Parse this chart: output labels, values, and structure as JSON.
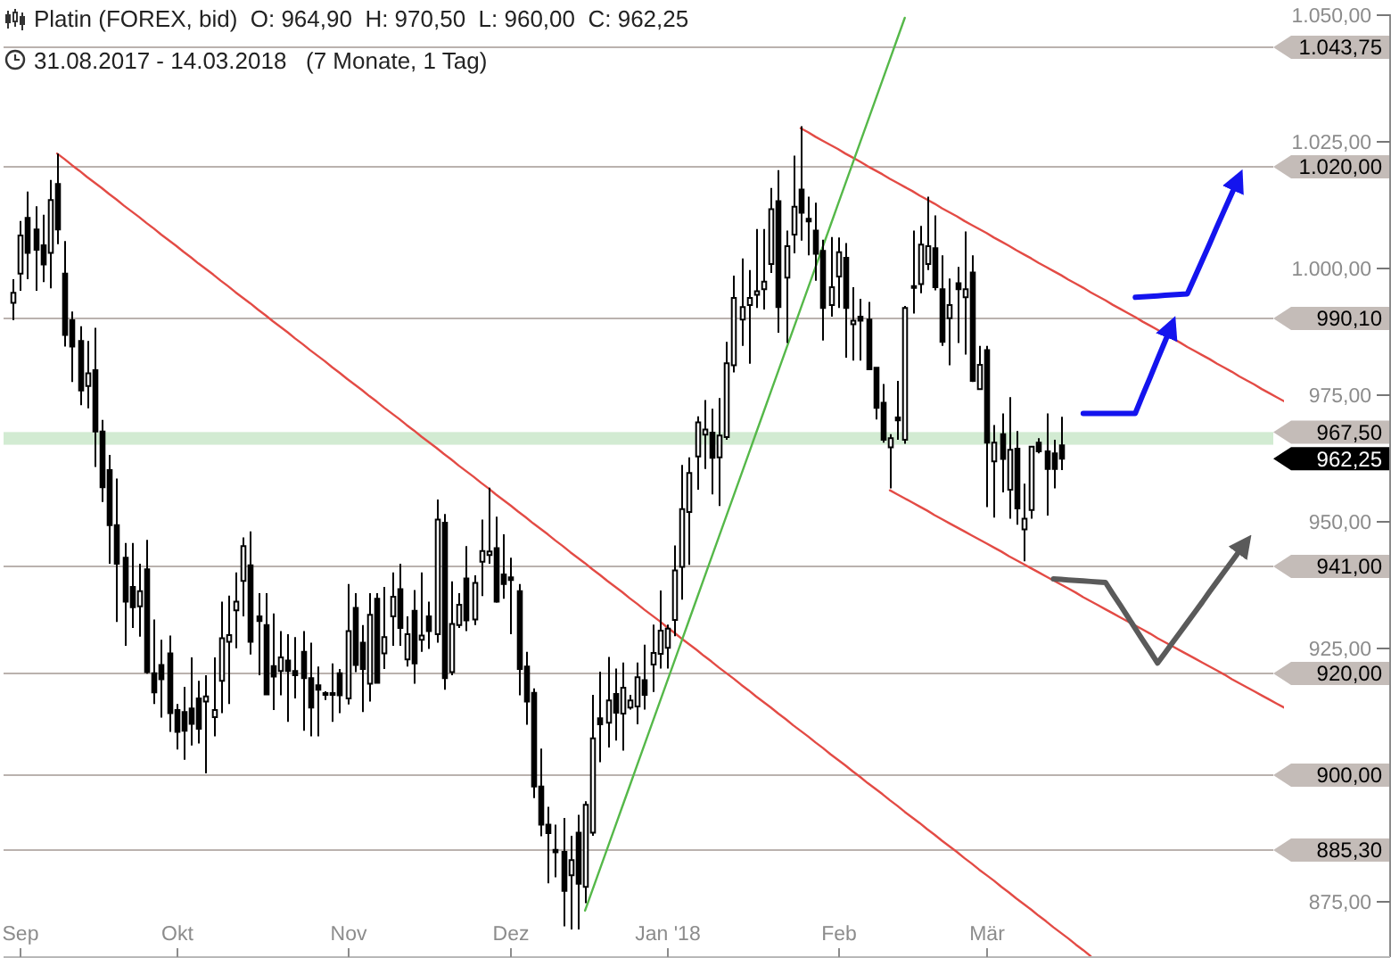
{
  "chart_data": {
    "type": "candlestick",
    "title": "Platin (FOREX, bid)  O: 964,90  H: 970,50  L: 960,00  C: 962,25",
    "subtitle": "31.08.2017 - 14.03.2018   (7 Monate, 1 Tag)",
    "color": "#000000",
    "categories": [
      null,
      "Sep",
      null,
      null,
      null,
      null,
      null,
      null,
      null,
      null,
      null,
      null,
      null,
      null,
      null,
      null,
      null,
      null,
      null,
      null,
      null,
      null,
      "Okt",
      null,
      null,
      null,
      null,
      null,
      null,
      null,
      null,
      null,
      null,
      null,
      null,
      null,
      null,
      null,
      null,
      null,
      null,
      null,
      null,
      null,
      null,
      "Nov",
      null,
      null,
      null,
      null,
      null,
      null,
      null,
      null,
      null,
      null,
      null,
      null,
      null,
      null,
      null,
      null,
      null,
      null,
      null,
      null,
      null,
      "Dez",
      null,
      null,
      null,
      null,
      null,
      null,
      null,
      null,
      null,
      null,
      null,
      null,
      null,
      null,
      null,
      null,
      null,
      null,
      null,
      null,
      "Jan '18",
      null,
      null,
      null,
      null,
      null,
      null,
      null,
      null,
      null,
      null,
      null,
      null,
      null,
      null,
      null,
      null,
      null,
      null,
      null,
      null,
      null,
      null,
      "Feb",
      null,
      null,
      null,
      null,
      null,
      null,
      null,
      null,
      null,
      null,
      null,
      null,
      null,
      null,
      null,
      null,
      null,
      null,
      null,
      "Mär",
      null,
      null,
      null,
      null,
      null,
      null,
      null,
      null,
      null,
      null,
      null,
      null,
      null,
      null,
      null,
      null,
      null,
      null,
      null,
      null,
      null,
      null,
      null,
      null,
      null,
      null,
      null,
      null,
      null,
      null,
      null,
      null,
      null,
      null,
      null,
      null,
      null,
      null,
      null,
      null
    ],
    "ohlc": [
      [
        993.0,
        997.7,
        989.6,
        995.0
      ],
      [
        998.8,
        1009.2,
        995.4,
        1006.3
      ],
      [
        1009.8,
        1015.0,
        997.7,
        1002.9
      ],
      [
        1007.5,
        1012.1,
        995.4,
        1003.5
      ],
      [
        1004.4,
        1010.4,
        997.1,
        1000.6
      ],
      [
        1002.9,
        1017.3,
        995.9,
        1013.3
      ],
      [
        1016.5,
        1022.5,
        1004.6,
        1007.5
      ],
      [
        998.8,
        1005.2,
        984.4,
        986.7
      ],
      [
        989.6,
        991.3,
        977.4,
        984.4
      ],
      [
        985.5,
        988.4,
        972.8,
        975.7
      ],
      [
        976.6,
        985.5,
        972.2,
        979.1
      ],
      [
        979.7,
        988.1,
        960.6,
        967.6
      ],
      [
        967.6,
        969.9,
        953.7,
        956.6
      ],
      [
        960.0,
        963.0,
        941.5,
        949.1
      ],
      [
        949.1,
        958.3,
        930.0,
        941.5
      ],
      [
        942.7,
        945.6,
        925.3,
        934.0
      ],
      [
        936.9,
        945.6,
        928.8,
        932.9
      ],
      [
        933.1,
        941.5,
        927.1,
        936.1
      ],
      [
        940.4,
        946.2,
        919.8,
        920.1
      ],
      [
        919.9,
        930.5,
        913.8,
        916.1
      ],
      [
        921.5,
        926.5,
        911.1,
        918.7
      ],
      [
        923.8,
        927.3,
        908.3,
        912.0
      ],
      [
        912.6,
        913.8,
        904.8,
        908.3
      ],
      [
        912.2,
        917.2,
        902.8,
        908.5
      ],
      [
        912.9,
        923.0,
        905.6,
        909.9
      ],
      [
        914.9,
        918.4,
        906.0,
        908.9
      ],
      [
        914.3,
        919.5,
        900.1,
        915.3
      ],
      [
        911.2,
        923.0,
        907.4,
        912.6
      ],
      [
        918.4,
        934.0,
        912.0,
        926.8
      ],
      [
        926.1,
        935.2,
        913.8,
        927.4
      ],
      [
        932.3,
        939.8,
        924.8,
        934.0
      ],
      [
        938.1,
        946.7,
        931.1,
        945.0
      ],
      [
        941.2,
        947.9,
        923.6,
        926.1
      ],
      [
        931.1,
        935.7,
        919.5,
        930.2
      ],
      [
        929.4,
        935.7,
        915.5,
        915.7
      ],
      [
        921.3,
        931.7,
        912.6,
        919.2
      ],
      [
        920.3,
        928.2,
        915.5,
        923.0
      ],
      [
        922.4,
        927.6,
        910.3,
        920.3
      ],
      [
        920.3,
        927.0,
        914.9,
        919.5
      ],
      [
        924.1,
        928.2,
        908.5,
        918.9
      ],
      [
        918.9,
        925.9,
        907.4,
        913.1
      ],
      [
        917.5,
        921.2,
        907.4,
        916.6
      ],
      [
        915.9,
        916.3,
        914.6,
        915.7
      ],
      [
        915.9,
        921.8,
        910.3,
        915.7
      ],
      [
        919.9,
        920.7,
        912.0,
        915.5
      ],
      [
        914.9,
        937.5,
        913.7,
        928.2
      ],
      [
        932.8,
        935.7,
        920.1,
        921.5
      ],
      [
        925.9,
        929.4,
        912.2,
        920.7
      ],
      [
        917.8,
        935.7,
        914.3,
        931.4
      ],
      [
        934.6,
        935.7,
        917.8,
        918.0
      ],
      [
        923.8,
        936.9,
        920.7,
        927.0
      ],
      [
        931.1,
        939.8,
        925.3,
        935.0
      ],
      [
        936.5,
        941.5,
        925.3,
        928.8
      ],
      [
        922.6,
        931.1,
        921.2,
        927.6
      ],
      [
        932.2,
        936.3,
        917.8,
        921.8
      ],
      [
        926.5,
        939.8,
        924.1,
        927.3
      ],
      [
        931.1,
        934.0,
        924.7,
        928.2
      ],
      [
        927.6,
        954.2,
        925.9,
        950.2
      ],
      [
        949.6,
        951.3,
        916.6,
        918.9
      ],
      [
        920.1,
        938.0,
        919.5,
        929.6
      ],
      [
        929.4,
        935.7,
        928.8,
        933.4
      ],
      [
        938.6,
        945.0,
        928.2,
        930.3
      ],
      [
        930.5,
        939.2,
        929.4,
        937.7
      ],
      [
        941.9,
        950.2,
        935.1,
        944.0
      ],
      [
        943.2,
        956.5,
        941.5,
        943.9
      ],
      [
        944.6,
        950.8,
        933.8,
        934.0
      ],
      [
        939.4,
        947.3,
        934.6,
        937.5
      ],
      [
        938.8,
        942.7,
        927.6,
        938.3
      ],
      [
        936.1,
        937.5,
        915.5,
        920.7
      ],
      [
        921.2,
        924.1,
        909.7,
        914.3
      ],
      [
        916.0,
        916.9,
        895.2,
        897.5
      ],
      [
        897.5,
        905.0,
        887.7,
        890.0
      ],
      [
        890.0,
        893.5,
        878.4,
        888.3
      ],
      [
        885.0,
        890.0,
        879.6,
        884.5
      ],
      [
        884.6,
        891.3,
        869.9,
        876.9
      ],
      [
        880.0,
        887.8,
        869.3,
        883.0
      ],
      [
        888.4,
        891.9,
        869.3,
        878.3
      ],
      [
        877.7,
        894.6,
        874.5,
        893.9
      ],
      [
        888.4,
        915.6,
        887.8,
        907.0
      ],
      [
        911.0,
        920.2,
        902.3,
        909.8
      ],
      [
        910.1,
        923.1,
        905.2,
        914.5
      ],
      [
        915.8,
        920.8,
        906.6,
        912.1
      ],
      [
        911.9,
        922.0,
        904.6,
        917.0
      ],
      [
        913.1,
        915.6,
        912.7,
        914.5
      ],
      [
        913.3,
        922.0,
        909.8,
        919.1
      ],
      [
        918.5,
        925.5,
        912.7,
        915.6
      ],
      [
        921.6,
        929.5,
        916.2,
        923.9
      ],
      [
        923.7,
        936.2,
        920.8,
        928.3
      ],
      [
        924.9,
        929.5,
        920.8,
        928.7
      ],
      [
        930.4,
        945.1,
        927.2,
        940.2
      ],
      [
        940.9,
        961.0,
        934.4,
        952.3
      ],
      [
        951.7,
        962.5,
        941.3,
        959.4
      ],
      [
        962.7,
        970.6,
        956.1,
        969.4
      ],
      [
        967.0,
        973.8,
        960.2,
        968.0
      ],
      [
        967.4,
        972.1,
        955.2,
        962.4
      ],
      [
        962.5,
        974.2,
        952.9,
        966.8
      ],
      [
        966.5,
        985.3,
        966.0,
        981.1
      ],
      [
        980.7,
        998.4,
        979.3,
        994.0
      ],
      [
        989.7,
        1001.8,
        984.5,
        992.2
      ],
      [
        992.6,
        999.5,
        981.0,
        994.0
      ],
      [
        994.6,
        1007.6,
        992.0,
        995.3
      ],
      [
        995.7,
        1007.6,
        991.7,
        997.2
      ],
      [
        1000.7,
        1015.7,
        998.9,
        1011.5
      ],
      [
        1013.1,
        1019.2,
        987.1,
        992.2
      ],
      [
        998.0,
        1007.3,
        985.1,
        1004.2
      ],
      [
        1006.5,
        1022.1,
        1002.8,
        1012.0
      ],
      [
        1015.4,
        1027.9,
        1005.3,
        1010.8
      ],
      [
        1009.6,
        1014.0,
        1002.4,
        1009.1
      ],
      [
        1007.3,
        1012.8,
        997.4,
        1002.7
      ],
      [
        1003.3,
        1005.5,
        985.6,
        992.0
      ],
      [
        992.6,
        1006.0,
        990.3,
        996.1
      ],
      [
        998.2,
        1005.9,
        992.0,
        1003.0
      ],
      [
        1001.9,
        1004.8,
        982.2,
        992.0
      ],
      [
        988.8,
        996.1,
        981.6,
        989.5
      ],
      [
        990.3,
        993.8,
        981.6,
        989.5
      ],
      [
        989.7,
        993.2,
        979.7,
        979.9
      ],
      [
        980.2,
        980.4,
        970.0,
        972.3
      ],
      [
        973.3,
        977.0,
        965.4,
        966.0
      ],
      [
        964.5,
        967.1,
        956.4,
        966.3
      ],
      [
        970.4,
        977.6,
        966.0,
        969.8
      ],
      [
        966.0,
        992.4,
        965.2,
        992.0
      ],
      [
        996.3,
        1007.3,
        990.9,
        996.0
      ],
      [
        996.7,
        1008.2,
        994.9,
        1004.5
      ],
      [
        1000.7,
        1014.0,
        999.5,
        1004.2
      ],
      [
        1003.8,
        1010.3,
        995.5,
        996.1
      ],
      [
        995.7,
        1002.4,
        984.5,
        985.3
      ],
      [
        990.0,
        997.8,
        980.7,
        992.6
      ],
      [
        996.9,
        1000.1,
        985.1,
        995.7
      ],
      [
        994.1,
        1007.1,
        982.8,
        995.7
      ],
      [
        999.0,
        1002.4,
        977.4,
        977.6
      ],
      [
        976.0,
        984.5,
        975.8,
        980.8
      ],
      [
        983.7,
        984.5,
        952.7,
        965.4
      ],
      [
        961.7,
        968.9,
        950.6,
        965.4
      ],
      [
        967.1,
        971.2,
        955.6,
        962.2
      ],
      [
        956.1,
        974.4,
        950.4,
        964.0
      ],
      [
        964.2,
        967.7,
        949.2,
        952.4
      ],
      [
        948.3,
        957.3,
        942.0,
        950.4
      ],
      [
        952.1,
        964.8,
        950.4,
        964.6
      ],
      [
        965.4,
        966.3,
        963.3,
        963.7
      ],
      [
        963.7,
        971.2,
        951.0,
        960.2
      ],
      [
        963.3,
        966.0,
        956.4,
        960.2
      ],
      [
        964.9,
        970.5,
        960.0,
        962.25
      ],
      null,
      null,
      null,
      null,
      null,
      null,
      null,
      null,
      null,
      null,
      null,
      null,
      null,
      null,
      null,
      null,
      null,
      null,
      null,
      null,
      null,
      null,
      null,
      null,
      null,
      null,
      null,
      null,
      null,
      null
    ],
    "series": [
      {
        "type": "line",
        "color": "#e34b45",
        "values": [
          null,
          null,
          null,
          null,
          null,
          null,
          1022.5,
          1021.4,
          1020.2,
          1019.1,
          1017.9,
          1016.8,
          1015.7,
          1014.5,
          1013.4,
          1012.2,
          1011.1,
          1010.0,
          1008.8,
          1007.7,
          1006.5,
          1005.4,
          1004.3,
          1003.1,
          1002.0,
          1000.8,
          999.7,
          998.6,
          997.4,
          996.3,
          995.1,
          994.0,
          992.9,
          991.7,
          990.6,
          989.4,
          988.3,
          987.2,
          986.0,
          984.9,
          983.7,
          982.6,
          981.5,
          980.3,
          979.2,
          978.0,
          976.9,
          975.8,
          974.6,
          973.5,
          972.3,
          971.2,
          970.1,
          968.9,
          967.8,
          966.6,
          965.5,
          964.4,
          963.2,
          962.1,
          960.9,
          959.8,
          958.7,
          957.5,
          956.4,
          955.2,
          954.1,
          953.0,
          951.8,
          950.7,
          949.5,
          948.4,
          947.3,
          946.1,
          945.0,
          943.8,
          942.7,
          941.6,
          940.4,
          939.3,
          938.1,
          937.0,
          935.9,
          934.7,
          933.6,
          932.4,
          931.3,
          930.2,
          929.0,
          927.9,
          926.7,
          925.6,
          924.5,
          923.3,
          922.2,
          921.0,
          919.9,
          918.8,
          917.6,
          916.5,
          915.3,
          914.2,
          913.1,
          911.9,
          910.8,
          909.6,
          908.5,
          907.4,
          906.2,
          905.1,
          903.9,
          902.8,
          901.7,
          900.5,
          899.4,
          898.2,
          897.1,
          896.0,
          894.8,
          893.7,
          892.5,
          891.4,
          890.3,
          889.1,
          888.0,
          886.8,
          885.7,
          884.6,
          883.4,
          882.3,
          881.1,
          880.0,
          878.9,
          877.7,
          876.6,
          875.4,
          874.3,
          873.2,
          872.0,
          870.9,
          869.7,
          868.6,
          867.5,
          866.3,
          865.2,
          864.0,
          null,
          null,
          null,
          null,
          null,
          null,
          null,
          null,
          null,
          null,
          null,
          null,
          null,
          null,
          null,
          null,
          null,
          null,
          null,
          null,
          null,
          null,
          null,
          null,
          null,
          null
        ]
      },
      {
        "type": "line",
        "color": "#e34b45",
        "values": [
          null,
          null,
          null,
          null,
          null,
          null,
          null,
          null,
          null,
          null,
          null,
          null,
          null,
          null,
          null,
          null,
          null,
          null,
          null,
          null,
          null,
          null,
          null,
          null,
          null,
          null,
          null,
          null,
          null,
          null,
          null,
          null,
          null,
          null,
          null,
          null,
          null,
          null,
          null,
          null,
          null,
          null,
          null,
          null,
          null,
          null,
          null,
          null,
          null,
          null,
          null,
          null,
          null,
          null,
          null,
          null,
          null,
          null,
          null,
          null,
          null,
          null,
          null,
          null,
          null,
          null,
          null,
          null,
          null,
          null,
          null,
          null,
          null,
          null,
          null,
          null,
          null,
          null,
          null,
          null,
          null,
          null,
          null,
          null,
          null,
          null,
          null,
          null,
          null,
          null,
          null,
          null,
          null,
          null,
          null,
          null,
          null,
          null,
          null,
          null,
          null,
          null,
          null,
          null,
          null,
          null,
          1027.5,
          1026.7,
          1025.8,
          1025.0,
          1024.2,
          1023.4,
          1022.5,
          1021.7,
          1020.9,
          1020.0,
          1019.2,
          1018.4,
          1017.5,
          1016.7,
          1015.9,
          1015.1,
          1014.2,
          1013.4,
          1012.6,
          1011.7,
          1010.9,
          1010.1,
          1009.2,
          1008.4,
          1007.6,
          1006.8,
          1005.9,
          1005.1,
          1004.3,
          1003.4,
          1002.6,
          1001.8,
          1000.9,
          1000.1,
          999.3,
          998.5,
          997.6,
          996.8,
          996.0,
          995.1,
          994.3,
          993.5,
          992.6,
          991.8,
          991.0,
          990.2,
          989.3,
          988.5,
          987.7,
          986.8,
          986.0,
          985.2,
          984.3,
          983.5,
          982.7,
          981.9,
          981.0,
          980.2,
          979.4,
          978.5,
          977.7,
          976.9,
          976.0,
          975.2,
          974.4,
          973.6
        ]
      },
      {
        "type": "line",
        "color": "#e34b45",
        "values": [
          null,
          null,
          null,
          null,
          null,
          null,
          null,
          null,
          null,
          null,
          null,
          null,
          null,
          null,
          null,
          null,
          null,
          null,
          null,
          null,
          null,
          null,
          null,
          null,
          null,
          null,
          null,
          null,
          null,
          null,
          null,
          null,
          null,
          null,
          null,
          null,
          null,
          null,
          null,
          null,
          null,
          null,
          null,
          null,
          null,
          null,
          null,
          null,
          null,
          null,
          null,
          null,
          null,
          null,
          null,
          null,
          null,
          null,
          null,
          null,
          null,
          null,
          null,
          null,
          null,
          null,
          null,
          null,
          null,
          null,
          null,
          null,
          null,
          null,
          null,
          null,
          null,
          null,
          null,
          null,
          null,
          null,
          null,
          null,
          null,
          null,
          null,
          null,
          null,
          null,
          null,
          null,
          null,
          null,
          null,
          null,
          null,
          null,
          null,
          null,
          null,
          null,
          null,
          null,
          null,
          null,
          null,
          null,
          null,
          null,
          null,
          null,
          null,
          null,
          null,
          null,
          null,
          null,
          956.0,
          955.2,
          954.4,
          953.6,
          952.8,
          952.0,
          951.1,
          950.3,
          949.5,
          948.7,
          947.9,
          947.1,
          946.3,
          945.5,
          944.7,
          943.9,
          943.0,
          942.2,
          941.4,
          940.6,
          939.8,
          939.0,
          938.2,
          937.4,
          936.6,
          935.8,
          934.9,
          934.1,
          933.3,
          932.5,
          931.7,
          930.9,
          930.1,
          929.3,
          928.5,
          927.7,
          926.8,
          926.0,
          925.2,
          924.4,
          923.6,
          922.8,
          922.0,
          921.2,
          920.4,
          919.6,
          918.7,
          917.9,
          917.1,
          916.3,
          915.5,
          914.7,
          913.9,
          913.1
        ]
      },
      {
        "type": "line",
        "color": "#55b849",
        "values": [
          null,
          null,
          null,
          null,
          null,
          null,
          null,
          null,
          null,
          null,
          null,
          null,
          null,
          null,
          null,
          null,
          null,
          null,
          null,
          null,
          null,
          null,
          null,
          null,
          null,
          null,
          null,
          null,
          null,
          null,
          null,
          null,
          null,
          null,
          null,
          null,
          null,
          null,
          null,
          null,
          null,
          null,
          null,
          null,
          null,
          null,
          null,
          null,
          null,
          null,
          null,
          null,
          null,
          null,
          null,
          null,
          null,
          null,
          null,
          null,
          null,
          null,
          null,
          null,
          null,
          null,
          null,
          null,
          null,
          null,
          null,
          null,
          null,
          null,
          null,
          null,
          null,
          873.0,
          877.1,
          881.2,
          885.3,
          889.4,
          893.5,
          897.6,
          901.7,
          905.8,
          909.9,
          914.0,
          918.1,
          922.2,
          926.3,
          930.4,
          934.5,
          938.6,
          942.7,
          946.8,
          950.9,
          955.0,
          959.1,
          963.2,
          967.3,
          971.4,
          975.5,
          979.6,
          983.7,
          987.8,
          991.9,
          996.0,
          1000.1,
          1004.2,
          1008.3,
          1012.4,
          1016.5,
          1020.6,
          1024.7,
          1028.8,
          1032.9,
          1037.0,
          1041.1,
          1045.2,
          1049.3,
          null,
          null,
          null,
          null,
          null,
          null,
          null,
          null,
          null,
          null,
          null,
          null,
          null,
          null,
          null,
          null,
          null,
          null,
          null,
          null,
          null,
          null,
          null,
          null,
          null,
          null,
          null,
          null,
          null,
          null,
          null,
          null,
          null,
          null,
          null,
          null,
          null,
          null,
          null,
          null,
          null,
          null,
          null,
          null,
          null,
          null,
          null,
          null,
          null,
          null,
          null
        ]
      },
      {
        "type": "line",
        "color": "#1414ee",
        "values": [
          null,
          null,
          null,
          null,
          null,
          null,
          null,
          null,
          null,
          null,
          null,
          null,
          null,
          null,
          null,
          null,
          null,
          null,
          null,
          null,
          null,
          null,
          null,
          null,
          null,
          null,
          null,
          null,
          null,
          null,
          null,
          null,
          null,
          null,
          null,
          null,
          null,
          null,
          null,
          null,
          null,
          null,
          null,
          null,
          null,
          null,
          null,
          null,
          null,
          null,
          null,
          null,
          null,
          null,
          null,
          null,
          null,
          null,
          null,
          null,
          null,
          null,
          null,
          null,
          null,
          null,
          null,
          null,
          null,
          null,
          null,
          null,
          null,
          null,
          null,
          null,
          null,
          null,
          null,
          null,
          null,
          null,
          null,
          null,
          null,
          null,
          null,
          null,
          null,
          null,
          null,
          null,
          null,
          null,
          null,
          null,
          null,
          null,
          null,
          null,
          null,
          null,
          null,
          null,
          null,
          null,
          null,
          null,
          null,
          null,
          null,
          null,
          null,
          null,
          null,
          null,
          null,
          null,
          null,
          null,
          null,
          null,
          null,
          null,
          null,
          null,
          null,
          null,
          null,
          null,
          null,
          null,
          null,
          null,
          null,
          null,
          null,
          null,
          null,
          null,
          null,
          null,
          null,
          null,
          971.2,
          971.2,
          971.2,
          971.2,
          971.2,
          971.2,
          971.2,
          971.2,
          974.8,
          978.3,
          981.9,
          985.4,
          989.0,
          null,
          null,
          null,
          null,
          null,
          null,
          null,
          null,
          null,
          null,
          null,
          null,
          null,
          null,
          null
        ]
      },
      {
        "type": "line",
        "color": "#1414ee",
        "values": [
          null,
          null,
          null,
          null,
          null,
          null,
          null,
          null,
          null,
          null,
          null,
          null,
          null,
          null,
          null,
          null,
          null,
          null,
          null,
          null,
          null,
          null,
          null,
          null,
          null,
          null,
          null,
          null,
          null,
          null,
          null,
          null,
          null,
          null,
          null,
          null,
          null,
          null,
          null,
          null,
          null,
          null,
          null,
          null,
          null,
          null,
          null,
          null,
          null,
          null,
          null,
          null,
          null,
          null,
          null,
          null,
          null,
          null,
          null,
          null,
          null,
          null,
          null,
          null,
          null,
          null,
          null,
          null,
          null,
          null,
          null,
          null,
          null,
          null,
          null,
          null,
          null,
          null,
          null,
          null,
          null,
          null,
          null,
          null,
          null,
          null,
          null,
          null,
          null,
          null,
          null,
          null,
          null,
          null,
          null,
          null,
          null,
          null,
          null,
          null,
          null,
          null,
          null,
          null,
          null,
          null,
          null,
          null,
          null,
          null,
          null,
          null,
          null,
          null,
          null,
          null,
          null,
          null,
          null,
          null,
          null,
          null,
          null,
          null,
          null,
          null,
          null,
          null,
          null,
          null,
          null,
          null,
          null,
          null,
          null,
          null,
          null,
          null,
          null,
          null,
          null,
          null,
          null,
          null,
          null,
          null,
          null,
          null,
          null,
          null,
          null,
          994.1,
          994.2,
          994.3,
          994.4,
          994.5,
          994.6,
          994.7,
          994.8,
          998.1,
          1001.4,
          1004.7,
          1008.1,
          1011.4,
          1014.7,
          1018.0,
          null,
          null,
          null,
          null,
          null,
          null
        ]
      },
      {
        "type": "line",
        "color": "#5a5a5a",
        "values": [
          null,
          null,
          null,
          null,
          null,
          null,
          null,
          null,
          null,
          null,
          null,
          null,
          null,
          null,
          null,
          null,
          null,
          null,
          null,
          null,
          null,
          null,
          null,
          null,
          null,
          null,
          null,
          null,
          null,
          null,
          null,
          null,
          null,
          null,
          null,
          null,
          null,
          null,
          null,
          null,
          null,
          null,
          null,
          null,
          null,
          null,
          null,
          null,
          null,
          null,
          null,
          null,
          null,
          null,
          null,
          null,
          null,
          null,
          null,
          null,
          null,
          null,
          null,
          null,
          null,
          null,
          null,
          null,
          null,
          null,
          null,
          null,
          null,
          null,
          null,
          null,
          null,
          null,
          null,
          null,
          null,
          null,
          null,
          null,
          null,
          null,
          null,
          null,
          null,
          null,
          null,
          null,
          null,
          null,
          null,
          null,
          null,
          null,
          null,
          null,
          null,
          null,
          null,
          null,
          null,
          null,
          null,
          null,
          null,
          null,
          null,
          null,
          null,
          null,
          null,
          null,
          null,
          null,
          null,
          null,
          null,
          null,
          null,
          null,
          null,
          null,
          null,
          null,
          null,
          null,
          null,
          null,
          null,
          null,
          null,
          null,
          null,
          null,
          null,
          null,
          938.5,
          938.4,
          938.3,
          938.2,
          938.1,
          938.0,
          937.9,
          937.8,
          935.5,
          933.3,
          931.0,
          928.7,
          926.4,
          924.2,
          921.9,
          923.9,
          925.9,
          927.9,
          929.9,
          931.9,
          933.9,
          936.0,
          938.0,
          940.0,
          942.0,
          944.0,
          946.0,
          null,
          null,
          null,
          null,
          null
        ]
      }
    ],
    "ylim": [
      864,
      1050
    ],
    "yticks": [
      {
        "value": 875,
        "label": "875,00"
      },
      {
        "value": 925,
        "label": "925,00"
      },
      {
        "value": 950,
        "label": "950,00"
      },
      {
        "value": 975,
        "label": "975,00"
      },
      {
        "value": 1000,
        "label": "1.000,00"
      },
      {
        "value": 1025,
        "label": "1.025,00"
      },
      {
        "value": 1050,
        "label": "1.050,00"
      }
    ],
    "ref_lines": [
      {
        "axis": "y",
        "value": 1043.75,
        "label": "1.043,75",
        "color": "#bab2ae"
      },
      {
        "axis": "y",
        "value": 1020,
        "label": "1.020,00",
        "color": "#bab2ae"
      },
      {
        "axis": "y",
        "value": 990.1,
        "label": "990,10",
        "color": "#bab2ae"
      },
      {
        "axis": "y",
        "value": 941,
        "label": "941,00",
        "color": "#bab2ae"
      },
      {
        "axis": "y",
        "value": 920,
        "label": "920,00",
        "color": "#bab2ae"
      },
      {
        "axis": "y",
        "value": 900,
        "label": "900,00",
        "color": "#bab2ae"
      },
      {
        "axis": "y",
        "value": 885.3,
        "label": "885,30",
        "color": "#bab2ae"
      }
    ],
    "bands": [
      {
        "axis": "y",
        "from": 965,
        "to": 967.5,
        "label": "967,50",
        "color": "#d2ebd2"
      }
    ],
    "annotations": [
      "962,25"
    ]
  }
}
